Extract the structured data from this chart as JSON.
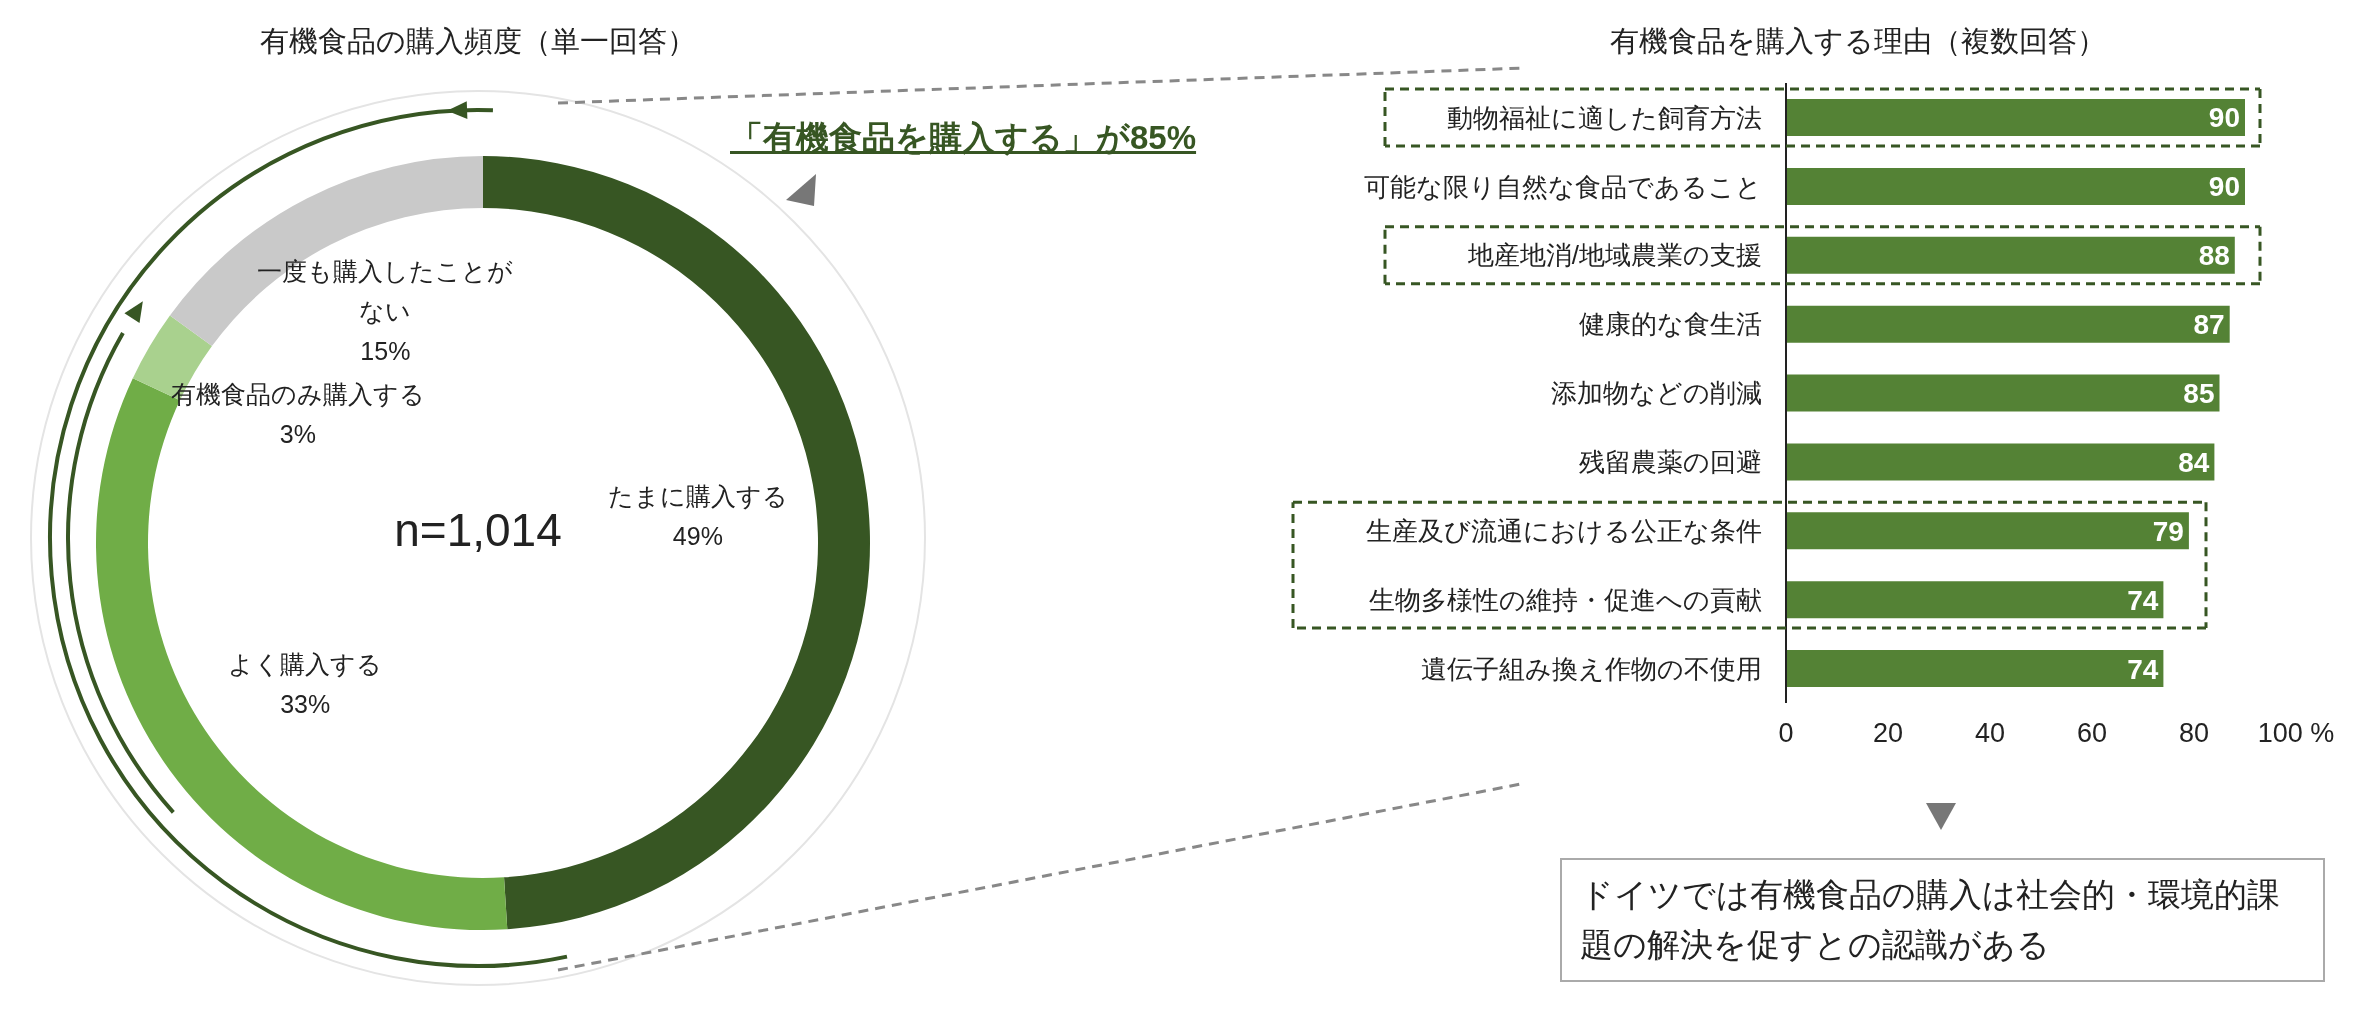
{
  "chart_data": [
    {
      "type": "donut",
      "title": "有機食品の購入頻度（単一回答）",
      "categories": [
        "たまに購入する",
        "よく購入する",
        "有機食品のみ購入する",
        "一度も購入したことがない"
      ],
      "values": [
        49,
        33,
        3,
        15
      ],
      "value_labels": [
        "49%",
        "33%",
        "3%",
        "15%"
      ],
      "colors": [
        "#375623",
        "#70ad47",
        "#a9d18e",
        "#c9c9c9"
      ],
      "annotations": [
        "「有機食品を購入する」が85%",
        "n=1,014"
      ]
    },
    {
      "type": "bar",
      "orientation": "horizontal",
      "title": "有機食品を購入する理由（複数回答）",
      "categories": [
        "動物福祉に適した飼育方法",
        "可能な限り自然な食品であること",
        "地産地消/地域農業の支援",
        "健康的な食生活",
        "添加物などの削減",
        "残留農薬の回避",
        "生産及び流通における公正な条件",
        "生物多様性の維持・促進への貢献",
        "遺伝子組み換え作物の不使用"
      ],
      "values": [
        90,
        90,
        88,
        87,
        85,
        84,
        79,
        74,
        74
      ],
      "color": "#548235",
      "xlim": [
        0,
        100
      ],
      "xticks": [
        0,
        20,
        40,
        60,
        80,
        {
          "value": 100,
          "label": "100 %"
        }
      ],
      "data_labels": true,
      "annotations": [
        "ドイツでは有機食品の購入は社会的・環境的課題の解決を促すとの認識がある"
      ]
    }
  ]
}
